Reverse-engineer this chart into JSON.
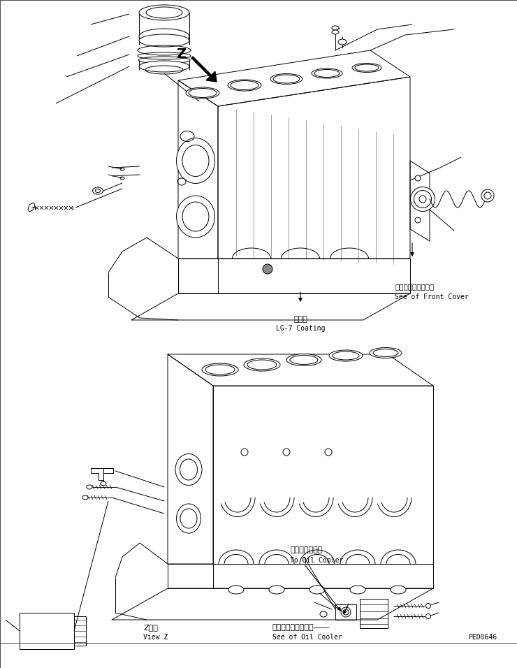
{
  "bg_color": "#ffffff",
  "fig_width": 7.4,
  "fig_height": 9.56,
  "dpi": 100,
  "lc": "#000000",
  "lw": 0.7,
  "annotations": {
    "front_cover_jp": "フロントカバー参照",
    "front_cover_en": "See of Front Cover",
    "coating_jp": "塗　布",
    "coating_en": "LG-7 Coating",
    "oil_cooler_jp": "オイルクーラヘ",
    "oil_cooler_en": "To Oil Cooler",
    "view_z_jp": "Z　視",
    "view_z_en": "View Z",
    "oil_cooler_ref_jp": "オイルクーラ参照　――",
    "oil_cooler_ref_en": "See of Oil Cooler",
    "part_number": "PED0646",
    "z_label": "Z"
  }
}
